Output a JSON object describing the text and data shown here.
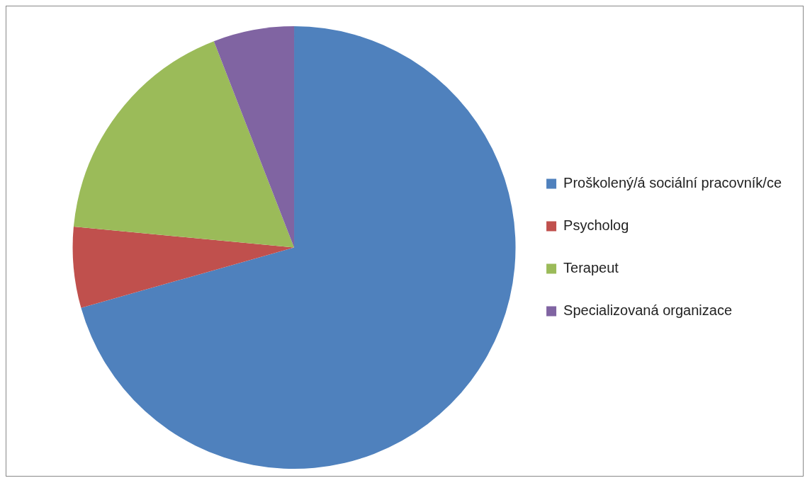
{
  "chart_data": {
    "type": "pie",
    "categories": [
      "Proškolený/á sociální pracovník/ce",
      "Psycholog",
      "Terapeut",
      "Specializovaná organizace"
    ],
    "values": [
      70.6,
      5.9,
      17.6,
      5.9
    ],
    "colors": [
      "#4f81bd",
      "#c0504d",
      "#9bbb59",
      "#8064a2"
    ],
    "legend": "right"
  }
}
